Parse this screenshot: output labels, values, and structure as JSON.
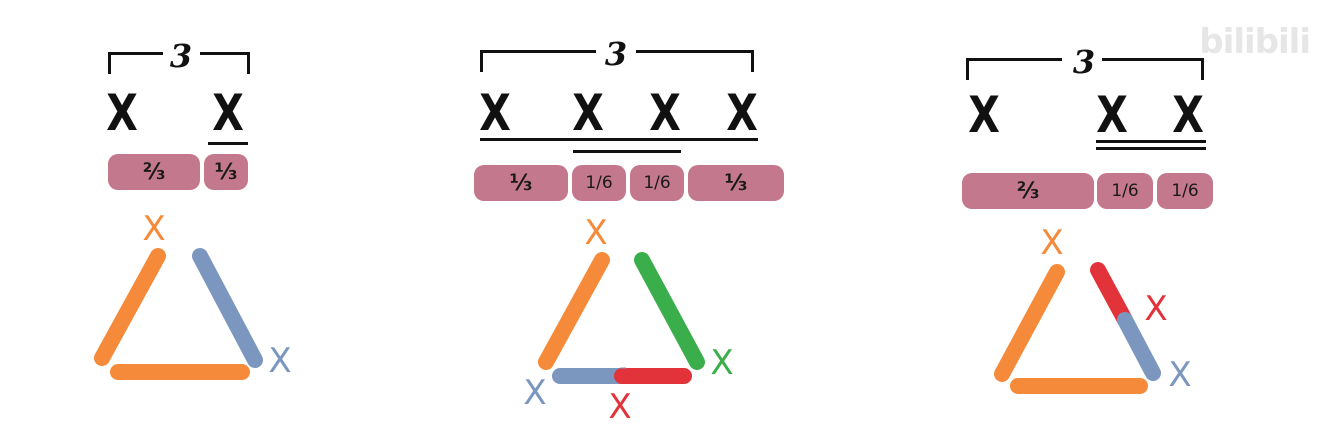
{
  "watermark": "bilibili",
  "colors": {
    "orange": "#f58a3a",
    "blue": "#7b97bf",
    "green": "#3aae4a",
    "red": "#e3333a",
    "pink": "#c4788e"
  },
  "panels": [
    {
      "tuplet": "3",
      "notes": [
        "X",
        "X"
      ],
      "durations": [
        "⅔",
        "⅓"
      ],
      "triangle": {
        "top_label": "X",
        "right_label": "X"
      }
    },
    {
      "tuplet": "3",
      "notes": [
        "X",
        "X",
        "X",
        "X"
      ],
      "durations": [
        "⅓",
        "1/6",
        "1/6",
        "⅓"
      ],
      "triangle": {
        "top_label": "X",
        "left_label": "X",
        "bottom_label": "X",
        "right_label": "X"
      }
    },
    {
      "tuplet": "3",
      "notes": [
        "X",
        "X",
        "X"
      ],
      "durations": [
        "⅔",
        "1/6",
        "1/6"
      ],
      "triangle": {
        "top_label": "X",
        "side_label": "X",
        "right_label": "X"
      }
    }
  ]
}
